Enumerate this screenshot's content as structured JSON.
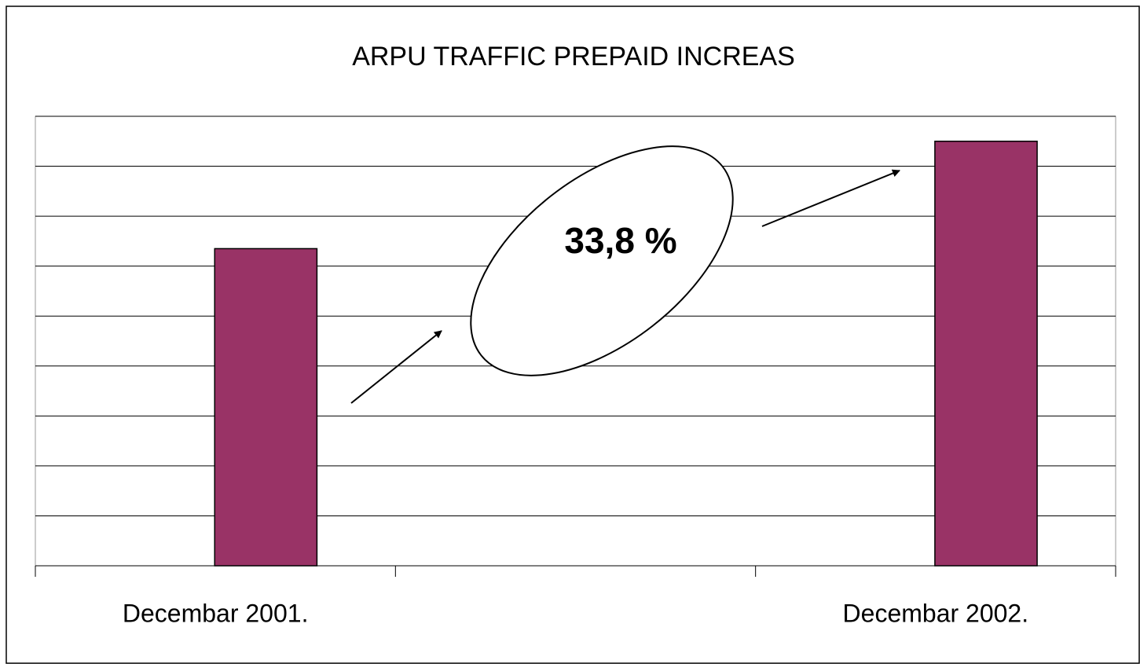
{
  "chart_data": {
    "type": "bar",
    "title": "ARPU TRAFFIC PREPAID INCREAS",
    "annotation": "33,8 %",
    "categories": [
      "Decembar 2001.",
      null,
      "Decembar 2002."
    ],
    "values": [
      6.35,
      null,
      8.5
    ],
    "color": "#993366",
    "ylim": [
      0,
      9
    ],
    "yticks": [
      0,
      1,
      2,
      3,
      4,
      5,
      6,
      7,
      8,
      9
    ],
    "grid": true
  }
}
